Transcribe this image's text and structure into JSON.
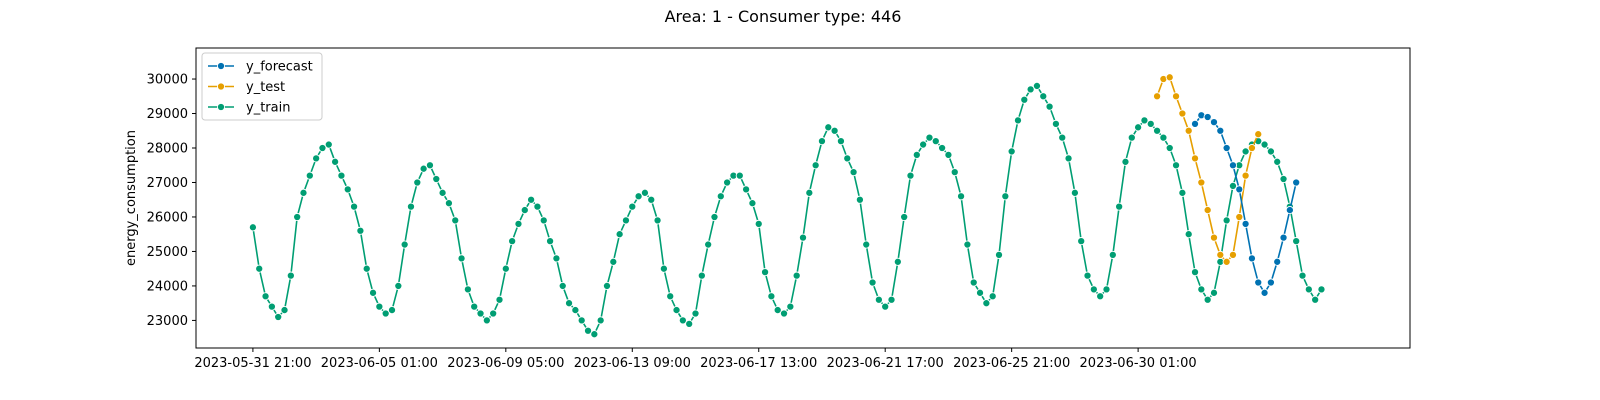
{
  "chart_data": {
    "type": "line",
    "title": "Area: 1 - Consumer type: 446",
    "xlabel": "",
    "ylabel": "energy_consumption",
    "x_start": "2023-05-31 21:00",
    "x_step_hours": 6,
    "xlim_index": [
      -9,
      183
    ],
    "ylim": [
      22200,
      30900
    ],
    "xticks": [
      {
        "index": 0,
        "label": "2023-05-31 21:00"
      },
      {
        "index": 20,
        "label": "2023-06-05 01:00"
      },
      {
        "index": 40,
        "label": "2023-06-09 05:00"
      },
      {
        "index": 60,
        "label": "2023-06-13 09:00"
      },
      {
        "index": 80,
        "label": "2023-06-17 13:00"
      },
      {
        "index": 100,
        "label": "2023-06-21 17:00"
      },
      {
        "index": 120,
        "label": "2023-06-25 21:00"
      },
      {
        "index": 140,
        "label": "2023-06-30 01:00"
      }
    ],
    "yticks": [
      23000,
      24000,
      25000,
      26000,
      27000,
      28000,
      29000,
      30000
    ],
    "grid": false,
    "legend_position": "top-left",
    "series": [
      {
        "name": "y_forecast",
        "color": "#0072b2",
        "start_index": 149,
        "values": [
          28700,
          28950,
          28900,
          28750,
          28500,
          28000,
          27500,
          26800,
          25800,
          24800,
          24100,
          23800,
          24100,
          24700,
          25400,
          26200,
          27000
        ]
      },
      {
        "name": "y_test",
        "color": "#e69f00",
        "start_index": 143,
        "values": [
          29500,
          30000,
          30050,
          29500,
          29000,
          28500,
          27700,
          27000,
          26200,
          25400,
          24900,
          24700,
          24900,
          26000,
          27200,
          28000,
          28400
        ]
      },
      {
        "name": "y_train",
        "color": "#009e73",
        "start_index": 0,
        "values": [
          25700,
          24500,
          23700,
          23400,
          23100,
          23300,
          24300,
          26000,
          26700,
          27200,
          27700,
          28000,
          28100,
          27600,
          27200,
          26800,
          26300,
          25600,
          24500,
          23800,
          23400,
          23200,
          23300,
          24000,
          25200,
          26300,
          27000,
          27400,
          27500,
          27100,
          26700,
          26400,
          25900,
          24800,
          23900,
          23400,
          23200,
          23000,
          23200,
          23600,
          24500,
          25300,
          25800,
          26200,
          26500,
          26300,
          25900,
          25300,
          24800,
          24000,
          23500,
          23300,
          23000,
          22700,
          22600,
          23000,
          24000,
          24700,
          25500,
          25900,
          26300,
          26600,
          26700,
          26500,
          25900,
          24500,
          23700,
          23300,
          23000,
          22900,
          23200,
          24300,
          25200,
          26000,
          26600,
          27000,
          27200,
          27200,
          26800,
          26400,
          25800,
          24400,
          23700,
          23300,
          23200,
          23400,
          24300,
          25400,
          26700,
          27500,
          28200,
          28600,
          28500,
          28200,
          27700,
          27300,
          26500,
          25200,
          24100,
          23600,
          23400,
          23600,
          24700,
          26000,
          27200,
          27800,
          28100,
          28300,
          28200,
          28000,
          27800,
          27300,
          26600,
          25200,
          24100,
          23800,
          23500,
          23700,
          24900,
          26600,
          27900,
          28800,
          29400,
          29700,
          29800,
          29500,
          29200,
          28700,
          28300,
          27700,
          26700,
          25300,
          24300,
          23900,
          23700,
          23900,
          24900,
          26300,
          27600,
          28300,
          28600,
          28800,
          28700,
          28500,
          28300,
          28000,
          27500,
          26700,
          25500,
          24400,
          23900,
          23600,
          23800,
          24700,
          25900,
          26900,
          27500,
          27900,
          28100,
          28200,
          28100,
          27900,
          27600,
          27100,
          26300,
          25300,
          24300,
          23900,
          23600,
          23900
        ]
      }
    ]
  },
  "legend": {
    "items": [
      {
        "label": "y_forecast",
        "color": "#0072b2"
      },
      {
        "label": "y_test",
        "color": "#e69f00"
      },
      {
        "label": "y_train",
        "color": "#009e73"
      }
    ]
  }
}
